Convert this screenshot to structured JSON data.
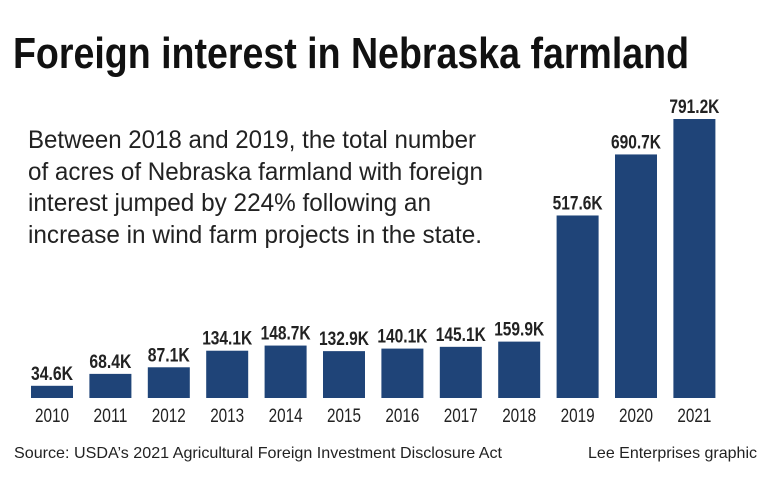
{
  "chart_data": {
    "type": "bar",
    "title": "Foreign interest in Nebraska farmland",
    "annotation_lines": [
      "Between 2018 and 2019, the total number",
      "of acres of Nebraska farmland with foreign",
      "interest jumped by 224% following an",
      "increase in wind farm projects in the state."
    ],
    "categories": [
      "2010",
      "2011",
      "2012",
      "2013",
      "2014",
      "2015",
      "2016",
      "2017",
      "2018",
      "2019",
      "2020",
      "2021"
    ],
    "values": [
      34.6,
      68.4,
      87.1,
      134.1,
      148.7,
      132.9,
      140.1,
      145.1,
      159.9,
      517.6,
      690.7,
      791.2
    ],
    "data_labels": [
      "34.6K",
      "68.4K",
      "87.1K",
      "134.1K",
      "148.7K",
      "132.9K",
      "140.1K",
      "145.1K",
      "159.9K",
      "517.6K",
      "690.7K",
      "791.2K"
    ],
    "unit": "thousand acres",
    "ylim": [
      0,
      791.2
    ],
    "grid": false,
    "bar_color": "#1f4478",
    "source": "Source: USDA’s 2021 Agricultural Foreign Investment Disclosure Act",
    "credit": "Lee Enterprises graphic"
  }
}
